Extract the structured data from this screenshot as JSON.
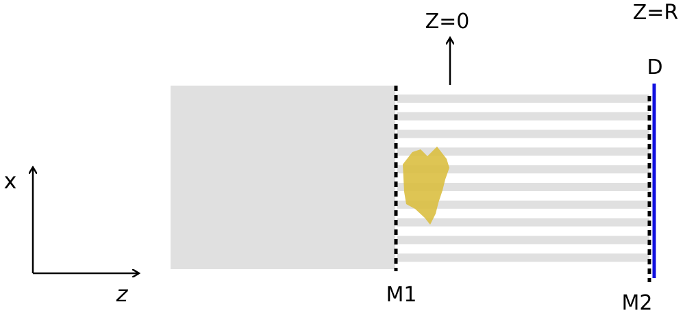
{
  "labels": {
    "z0": "Z=0",
    "zr": "Z=R",
    "d": "D",
    "m1": "M1",
    "m2": "M2",
    "x_axis": "x",
    "z_axis": "z"
  },
  "colors": {
    "medium": "#e0e0e0",
    "stripe": "#e0e0e0",
    "object": "#d9bd3c",
    "detector": "#1010e0",
    "mask": "#000000",
    "ink": "#000000"
  },
  "stripe_count": 10
}
